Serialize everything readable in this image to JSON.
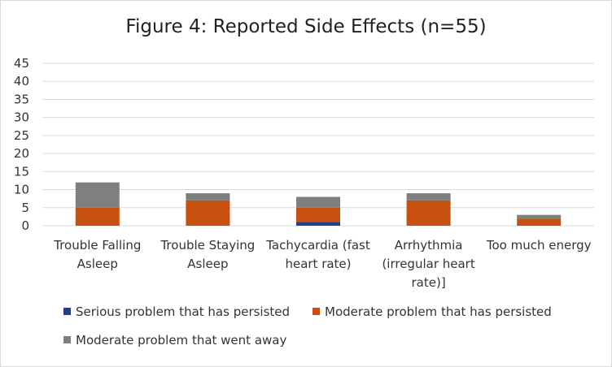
{
  "chart_data": {
    "type": "bar",
    "stacked": true,
    "title": "Figure 4: Reported Side Effects (n=55)",
    "xlabel": "",
    "ylabel": "",
    "ylim": [
      0,
      45
    ],
    "yticks": [
      0,
      5,
      10,
      15,
      20,
      25,
      30,
      35,
      40,
      45
    ],
    "grid": true,
    "legend_position": "bottom",
    "categories": [
      [
        "Trouble Falling",
        "Asleep"
      ],
      [
        "Trouble Staying",
        "Asleep"
      ],
      [
        "Tachycardia (fast",
        "heart rate)"
      ],
      [
        "Arrhythmia",
        "(irregular heart",
        "rate)]"
      ],
      [
        "Too much energy"
      ]
    ],
    "series": [
      {
        "name": "Serious problem that has persisted",
        "color": "#1f3f8f",
        "values": [
          0,
          0,
          1,
          0,
          0
        ]
      },
      {
        "name": "Moderate problem that has persisted",
        "color": "#c8500f",
        "values": [
          5,
          7,
          4,
          7,
          2
        ]
      },
      {
        "name": "Moderate problem that went away",
        "color": "#7f7f7f",
        "values": [
          7,
          2,
          3,
          2,
          1
        ]
      }
    ]
  }
}
